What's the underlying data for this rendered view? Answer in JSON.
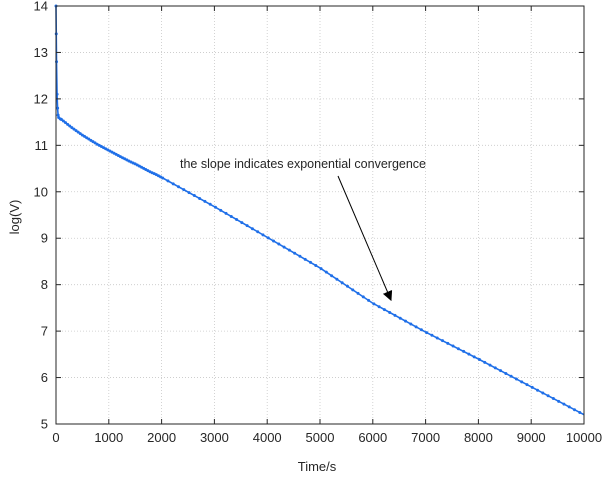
{
  "chart_data": {
    "type": "line",
    "title": "",
    "xlabel": "Time/s",
    "ylabel": "log(V)",
    "xlim": [
      0,
      10000
    ],
    "ylim": [
      5,
      14
    ],
    "x_ticks": [
      0,
      1000,
      2000,
      3000,
      4000,
      5000,
      6000,
      7000,
      8000,
      9000,
      10000
    ],
    "x_tick_labels": [
      "0",
      "1000",
      "2000",
      "3000",
      "4000",
      "5000",
      "6000",
      "7000",
      "8000",
      "9000",
      "10000"
    ],
    "y_ticks": [
      5,
      6,
      7,
      8,
      9,
      10,
      11,
      12,
      13,
      14
    ],
    "y_tick_labels": [
      "5",
      "6",
      "7",
      "8",
      "9",
      "10",
      "11",
      "12",
      "13",
      "14"
    ],
    "grid": "dotted",
    "box": true,
    "series": [
      {
        "color": "#1f6fe8",
        "marker": "dot",
        "x": [
          0,
          5,
          10,
          20,
          30,
          40,
          50,
          80,
          100,
          200,
          300,
          400,
          500,
          600,
          700,
          800,
          900,
          1000,
          1100,
          1200,
          1300,
          1400,
          1500,
          1600,
          1700,
          1800,
          1900,
          2000,
          3000,
          4000,
          5000,
          6000,
          7000,
          8000,
          9000,
          10000
        ],
        "y": [
          14.0,
          13.4,
          12.8,
          12.1,
          11.8,
          11.65,
          11.6,
          11.57,
          11.56,
          11.47,
          11.38,
          11.3,
          11.22,
          11.15,
          11.08,
          11.01,
          10.95,
          10.89,
          10.83,
          10.77,
          10.71,
          10.65,
          10.6,
          10.54,
          10.48,
          10.42,
          10.37,
          10.31,
          9.68,
          9.02,
          8.36,
          7.6,
          6.98,
          6.4,
          5.8,
          5.2
        ]
      }
    ],
    "annotation": {
      "text": "the slope indicates exponential convergence",
      "arrow_tip": [
        6300,
        7.6
      ]
    }
  }
}
